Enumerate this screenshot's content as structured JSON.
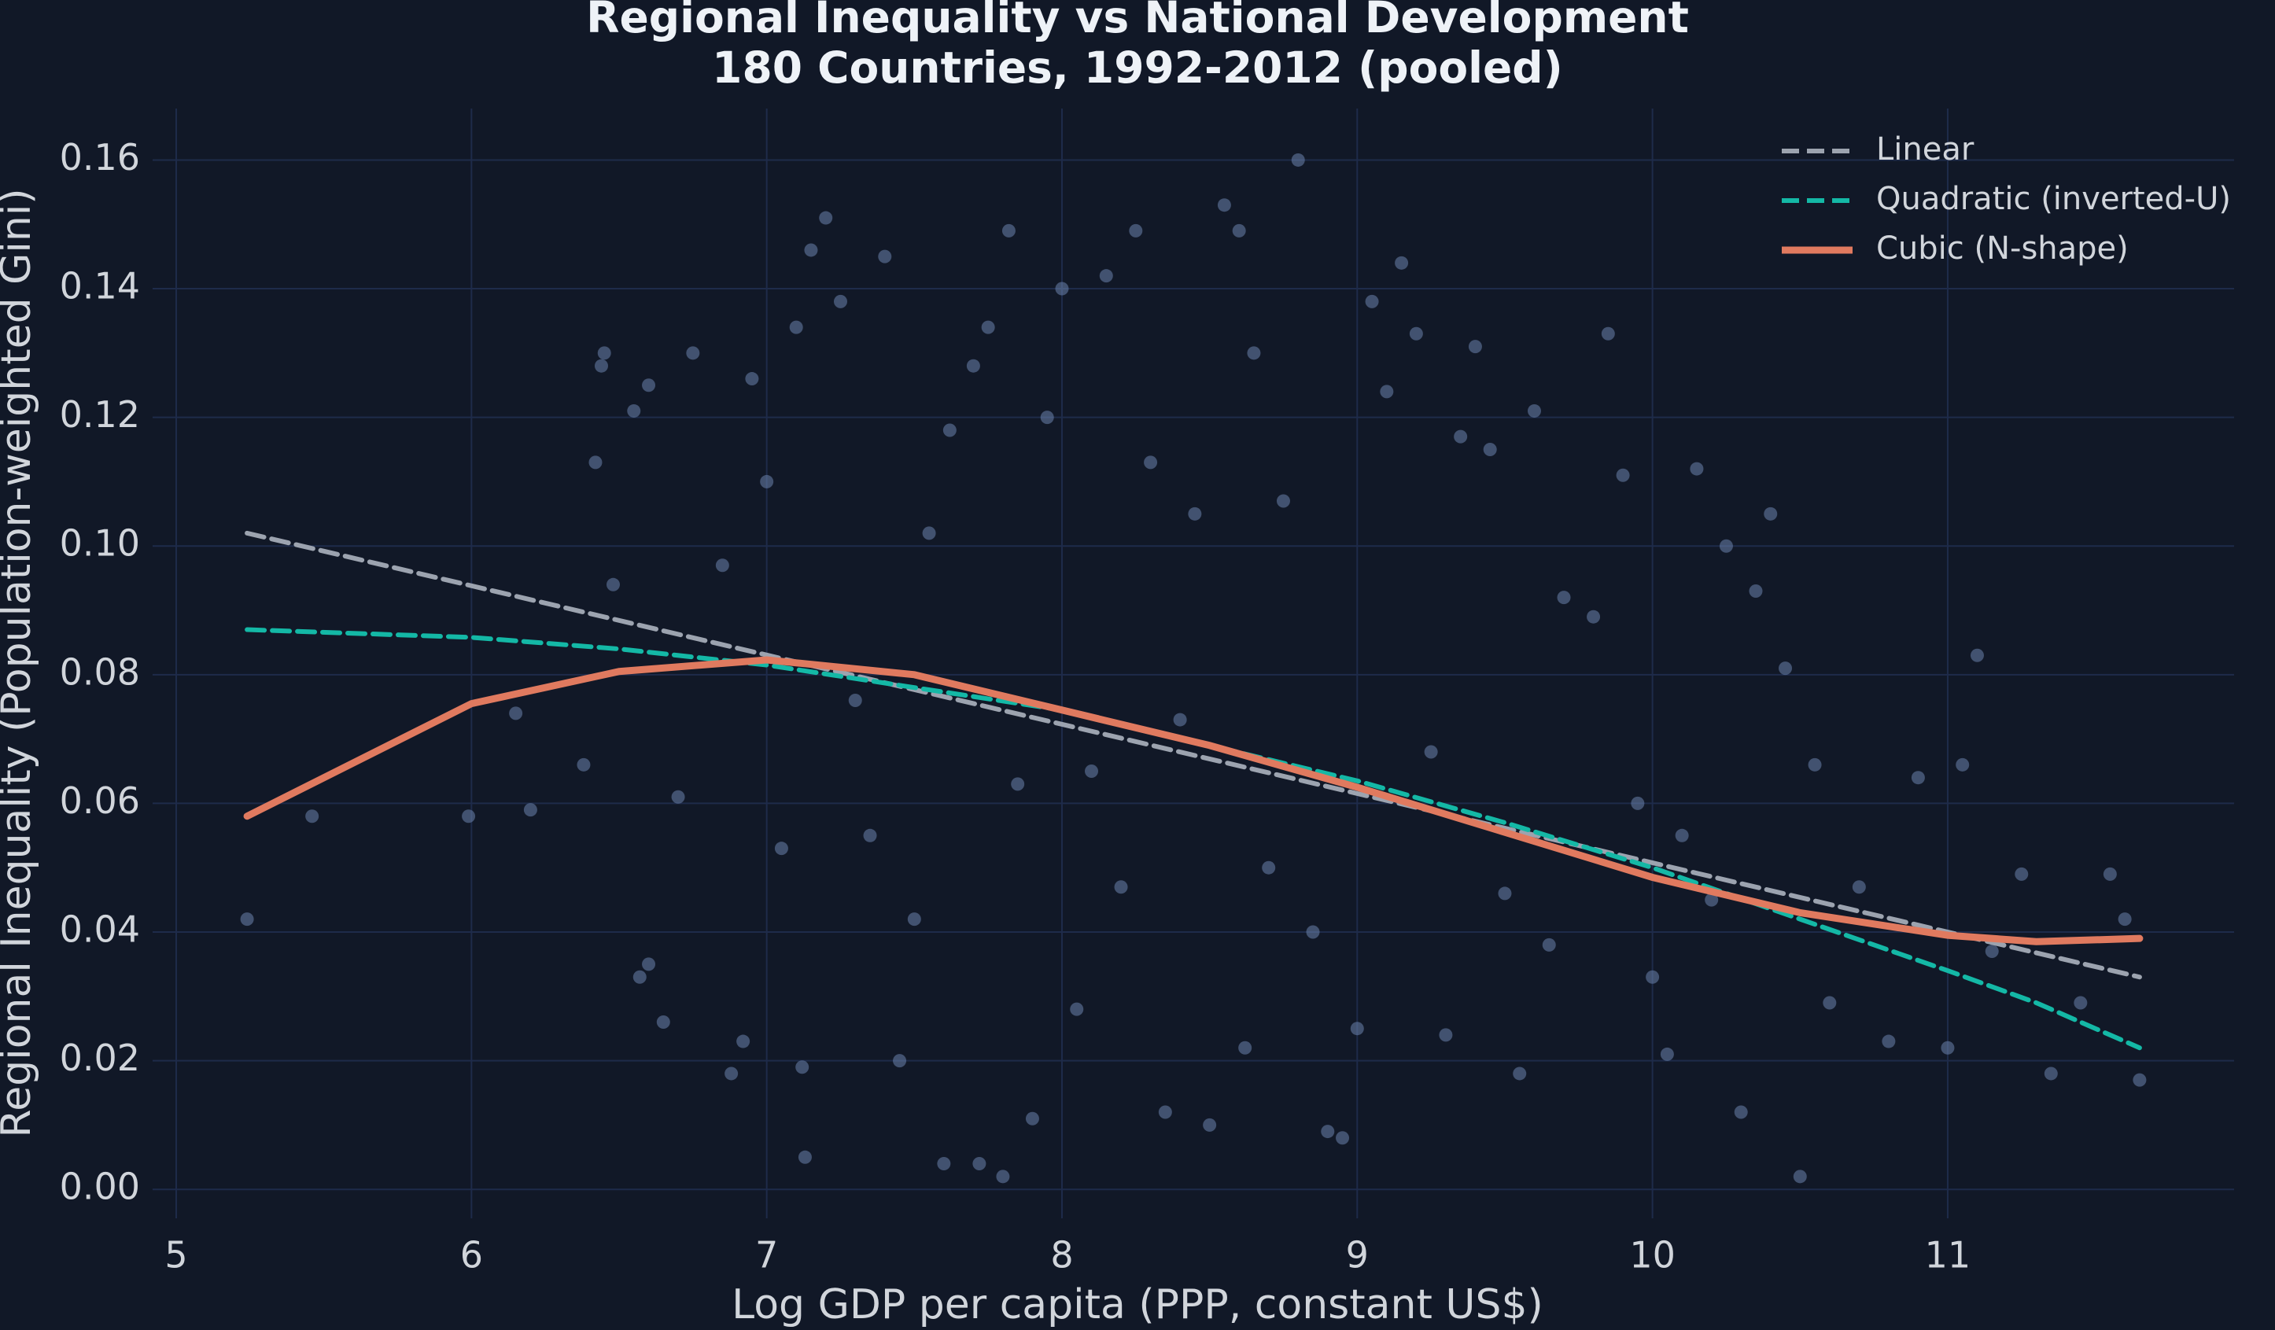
{
  "chart_data": {
    "type": "scatter",
    "title": "Regional Inequality vs National Development",
    "subtitle": "180 Countries, 1992-2012 (pooled)",
    "x_label": "Log GDP per capita (PPP, constant US$)",
    "y_label": "Regional Inequality (Population-weighted Gini)",
    "xlim": [
      4.92,
      11.97
    ],
    "ylim": [
      -0.0045,
      0.168
    ],
    "xticks": [
      5,
      6,
      7,
      8,
      9,
      10,
      11
    ],
    "yticks": [
      {
        "value": 0,
        "label": "0.00"
      },
      0.02,
      0.04,
      0.06,
      0.08,
      {
        "value": 0.1,
        "label": "0.10"
      },
      0.12,
      0.14,
      0.16
    ],
    "grid": true,
    "legend": "upper right",
    "points": {
      "color": "#6b84ad",
      "x": [
        5.24,
        5.46,
        5.99,
        6.15,
        6.2,
        6.38,
        6.42,
        6.45,
        6.44,
        6.48,
        6.55,
        6.6,
        6.57,
        6.6,
        6.65,
        6.7,
        6.75,
        6.85,
        6.88,
        6.92,
        6.95,
        7.0,
        7.05,
        7.1,
        7.12,
        7.13,
        7.15,
        7.2,
        7.25,
        7.3,
        7.35,
        7.4,
        7.45,
        7.5,
        7.55,
        7.6,
        7.62,
        7.7,
        7.72,
        7.75,
        7.8,
        7.82,
        7.85,
        7.9,
        7.95,
        8.0,
        8.05,
        8.1,
        8.15,
        8.2,
        8.25,
        8.3,
        8.35,
        8.4,
        8.45,
        8.5,
        8.55,
        8.6,
        8.62,
        8.65,
        8.7,
        8.75,
        8.8,
        8.85,
        8.9,
        8.95,
        9.0,
        9.05,
        9.1,
        9.15,
        9.2,
        9.25,
        9.3,
        9.35,
        9.4,
        9.45,
        9.5,
        9.55,
        9.6,
        9.65,
        9.7,
        9.8,
        9.85,
        9.9,
        9.95,
        10.0,
        10.05,
        10.1,
        10.15,
        10.2,
        10.25,
        10.3,
        10.35,
        10.4,
        10.45,
        10.5,
        10.55,
        10.6,
        10.7,
        10.8,
        10.9,
        11.0,
        11.05,
        11.1,
        11.15,
        11.25,
        11.35,
        11.45,
        11.55,
        11.6,
        11.65
      ],
      "values": [
        0.042,
        0.058,
        0.058,
        0.074,
        0.059,
        0.066,
        0.113,
        0.13,
        0.128,
        0.094,
        0.121,
        0.125,
        0.033,
        0.035,
        0.026,
        0.061,
        0.13,
        0.097,
        0.018,
        0.023,
        0.126,
        0.11,
        0.053,
        0.134,
        0.019,
        0.005,
        0.146,
        0.151,
        0.138,
        0.076,
        0.055,
        0.145,
        0.02,
        0.042,
        0.102,
        0.004,
        0.118,
        0.128,
        0.004,
        0.134,
        0.002,
        0.149,
        0.063,
        0.011,
        0.12,
        0.14,
        0.028,
        0.065,
        0.142,
        0.047,
        0.149,
        0.113,
        0.012,
        0.073,
        0.105,
        0.01,
        0.153,
        0.149,
        0.022,
        0.13,
        0.05,
        0.107,
        0.16,
        0.04,
        0.009,
        0.008,
        0.025,
        0.138,
        0.124,
        0.144,
        0.133,
        0.068,
        0.024,
        0.117,
        0.131,
        0.115,
        0.046,
        0.018,
        0.121,
        0.038,
        0.092,
        0.089,
        0.133,
        0.111,
        0.06,
        0.033,
        0.021,
        0.055,
        0.112,
        0.045,
        0.1,
        0.012,
        0.093,
        0.105,
        0.081,
        0.002,
        0.066,
        0.029,
        0.047,
        0.023,
        0.064,
        0.022,
        0.066,
        0.083,
        0.037,
        0.049,
        0.018,
        0.029,
        0.049,
        0.042,
        0.017
      ]
    },
    "series": [
      {
        "name": "Linear",
        "color": "#9ca3af",
        "dash": true,
        "x": [
          5.24,
          11.65
        ],
        "values": [
          0.102,
          0.033
        ]
      },
      {
        "name": "Quadratic (inverted-U)",
        "color": "#14b8a6",
        "dash": true,
        "x": [
          5.24,
          6,
          6.5,
          7,
          7.5,
          8,
          8.5,
          9,
          9.5,
          10,
          10.5,
          11,
          11.3,
          11.65
        ],
        "values": [
          0.087,
          0.0858,
          0.084,
          0.0815,
          0.078,
          0.0745,
          0.069,
          0.0635,
          0.057,
          0.05,
          0.042,
          0.034,
          0.029,
          0.022
        ]
      },
      {
        "name": "Cubic (N-shape)",
        "color": "#e07a5f",
        "dash": false,
        "x": [
          5.24,
          6,
          6.5,
          7,
          7.5,
          8,
          8.5,
          9,
          9.5,
          10,
          10.5,
          11,
          11.3,
          11.65
        ],
        "values": [
          0.058,
          0.0755,
          0.0805,
          0.0823,
          0.08,
          0.0745,
          0.069,
          0.0625,
          0.0555,
          0.0485,
          0.043,
          0.0395,
          0.0385,
          0.039
        ]
      }
    ]
  }
}
